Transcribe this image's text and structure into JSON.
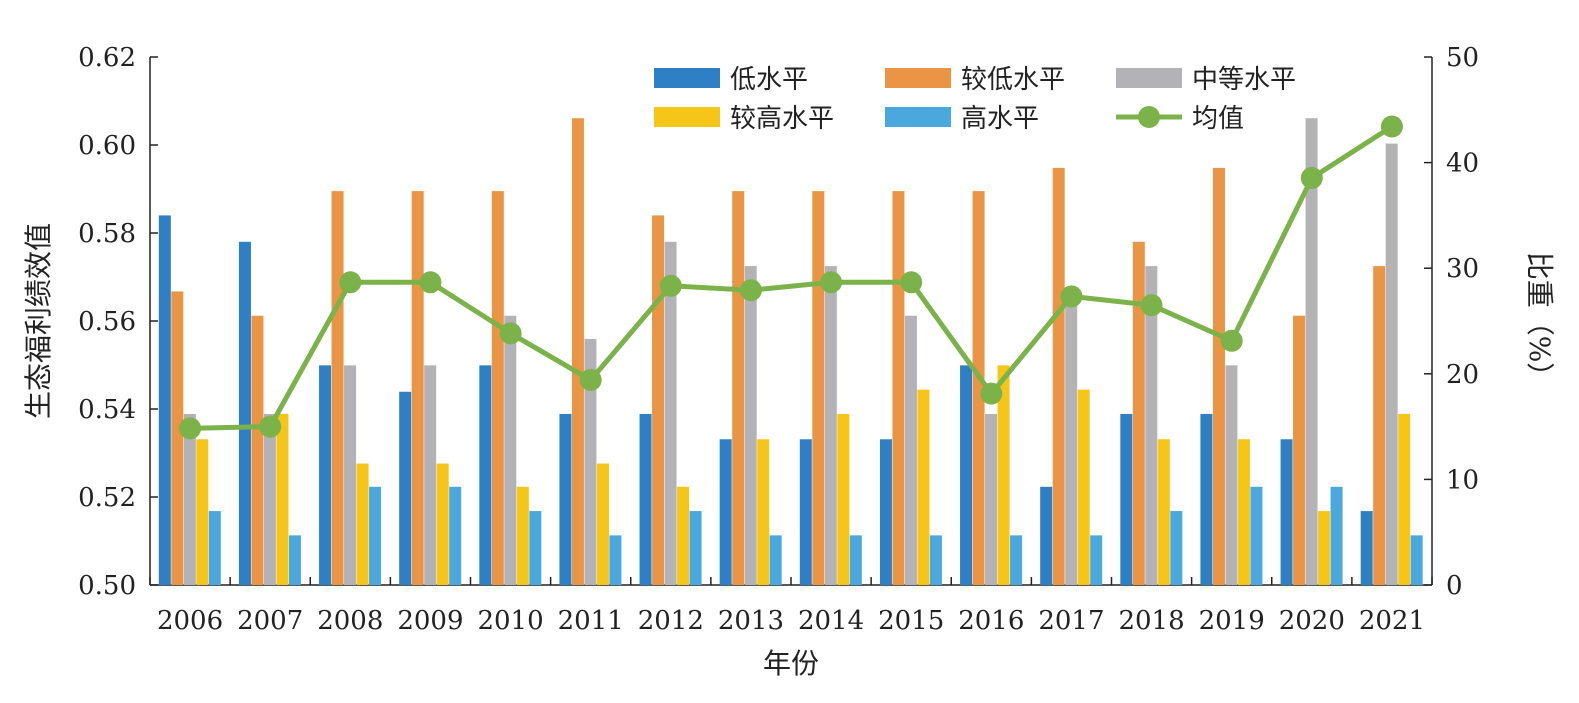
{
  "chart_data": {
    "type": "bar",
    "title": "",
    "xlabel": "年份",
    "ylabel": "生态福利绩效值",
    "y2label": "比重（%）",
    "categories": [
      "2006",
      "2007",
      "2008",
      "2009",
      "2010",
      "2011",
      "2012",
      "2013",
      "2014",
      "2015",
      "2016",
      "2017",
      "2018",
      "2019",
      "2020",
      "2021"
    ],
    "ylim": [
      0.5,
      0.62
    ],
    "y2lim": [
      0,
      50
    ],
    "yticks": [
      "0.50",
      "0.52",
      "0.54",
      "0.56",
      "0.58",
      "0.60",
      "0.62"
    ],
    "y2ticks": [
      "0",
      "10",
      "20",
      "30",
      "40",
      "50"
    ],
    "series": [
      {
        "name": "低水平",
        "axis": "right",
        "color": "#2e7fc4",
        "values": [
          35.0,
          32.5,
          20.8,
          18.3,
          20.8,
          16.2,
          16.2,
          13.8,
          13.8,
          13.8,
          20.8,
          9.3,
          16.2,
          16.2,
          13.8,
          7.0
        ]
      },
      {
        "name": "较低水平",
        "axis": "right",
        "color": "#ea9446",
        "values": [
          27.8,
          25.5,
          37.3,
          37.3,
          37.3,
          44.2,
          35.0,
          37.3,
          37.3,
          37.3,
          37.3,
          39.5,
          32.5,
          39.5,
          25.5,
          30.2
        ]
      },
      {
        "name": "中等水平",
        "axis": "right",
        "color": "#b2b2b7",
        "values": [
          16.2,
          16.2,
          20.8,
          20.8,
          25.5,
          23.3,
          32.5,
          30.2,
          30.2,
          25.5,
          16.2,
          27.8,
          30.2,
          20.8,
          44.2,
          41.8
        ]
      },
      {
        "name": "较高水平",
        "axis": "right",
        "color": "#f5c518",
        "values": [
          13.8,
          16.2,
          11.5,
          11.5,
          9.3,
          11.5,
          9.3,
          13.8,
          16.2,
          18.5,
          20.8,
          18.5,
          13.8,
          13.8,
          7.0,
          16.2
        ]
      },
      {
        "name": "高水平",
        "axis": "right",
        "color": "#4ba8dc",
        "values": [
          7.0,
          4.7,
          9.3,
          9.3,
          7.0,
          4.7,
          7.0,
          4.7,
          4.7,
          4.7,
          4.7,
          4.7,
          7.0,
          9.3,
          9.3,
          4.7
        ]
      },
      {
        "name": "均值",
        "type": "line",
        "axis": "left",
        "color": "#7bb34a",
        "values": [
          0.5356,
          0.536,
          0.5688,
          0.5688,
          0.5572,
          0.5466,
          0.568,
          0.567,
          0.5688,
          0.5688,
          0.5435,
          0.5656,
          0.5636,
          0.5555,
          0.5925,
          0.6042
        ]
      }
    ],
    "legend": {
      "placement": "top-right",
      "columns": 3
    },
    "grid": false
  }
}
